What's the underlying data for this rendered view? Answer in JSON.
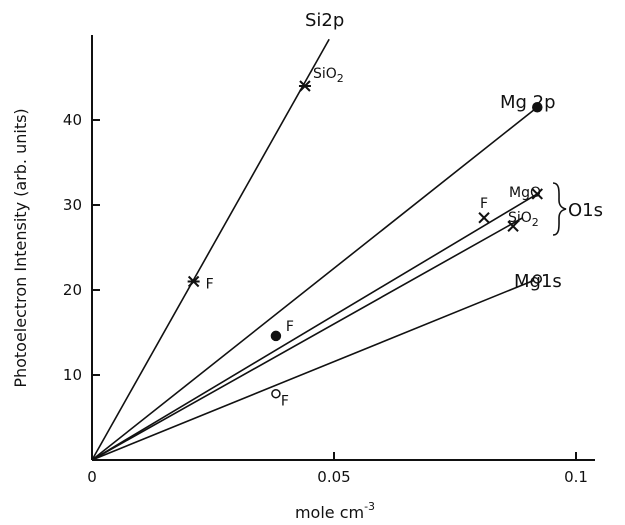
{
  "chart_data": {
    "type": "line",
    "xlabel": "mole cm",
    "xlabel_superscript": "-3",
    "ylabel": "Photoelectron Intensity (arb. units)",
    "xlim": [
      0,
      0.1
    ],
    "ylim": [
      0,
      50
    ],
    "x_ticks": [
      {
        "value": 0,
        "label": "0"
      },
      {
        "value": 0.05,
        "label": "0.05"
      },
      {
        "value": 0.1,
        "label": "0.1"
      }
    ],
    "y_ticks": [
      {
        "value": 10,
        "label": "10"
      },
      {
        "value": 20,
        "label": "20"
      },
      {
        "value": 30,
        "label": "30"
      },
      {
        "value": 40,
        "label": "40"
      }
    ],
    "group_label": "O1s",
    "series": [
      {
        "name": "Si2p",
        "marker": "asterisk",
        "line_end": [
          0.049,
          49.5
        ],
        "points": [
          {
            "x": 0.021,
            "y": 21,
            "label": "F"
          },
          {
            "x": 0.044,
            "y": 44,
            "label": "SiO2"
          }
        ]
      },
      {
        "name": "Mg 2p",
        "marker": "filled-circle",
        "line_end": [
          0.092,
          41.5
        ],
        "points": [
          {
            "x": 0.038,
            "y": 14.6,
            "label": "F"
          },
          {
            "x": 0.092,
            "y": 41.5,
            "label": ""
          }
        ]
      },
      {
        "name": "MgO",
        "marker": "cross",
        "line_end": [
          0.092,
          31.3
        ],
        "points": [
          {
            "x": 0.081,
            "y": 28.5,
            "label": "F"
          },
          {
            "x": 0.092,
            "y": 31.3,
            "label": ""
          }
        ]
      },
      {
        "name": "SiO2",
        "marker": "cross",
        "line_end": [
          0.089,
          28.5
        ],
        "points": [
          {
            "x": 0.087,
            "y": 27.5,
            "label": ""
          }
        ]
      },
      {
        "name": "Mg1s",
        "marker": "open-circle",
        "line_end": [
          0.092,
          21.3
        ],
        "points": [
          {
            "x": 0.038,
            "y": 7.8,
            "label": "F"
          },
          {
            "x": 0.092,
            "y": 21.3,
            "label": ""
          }
        ]
      }
    ]
  }
}
